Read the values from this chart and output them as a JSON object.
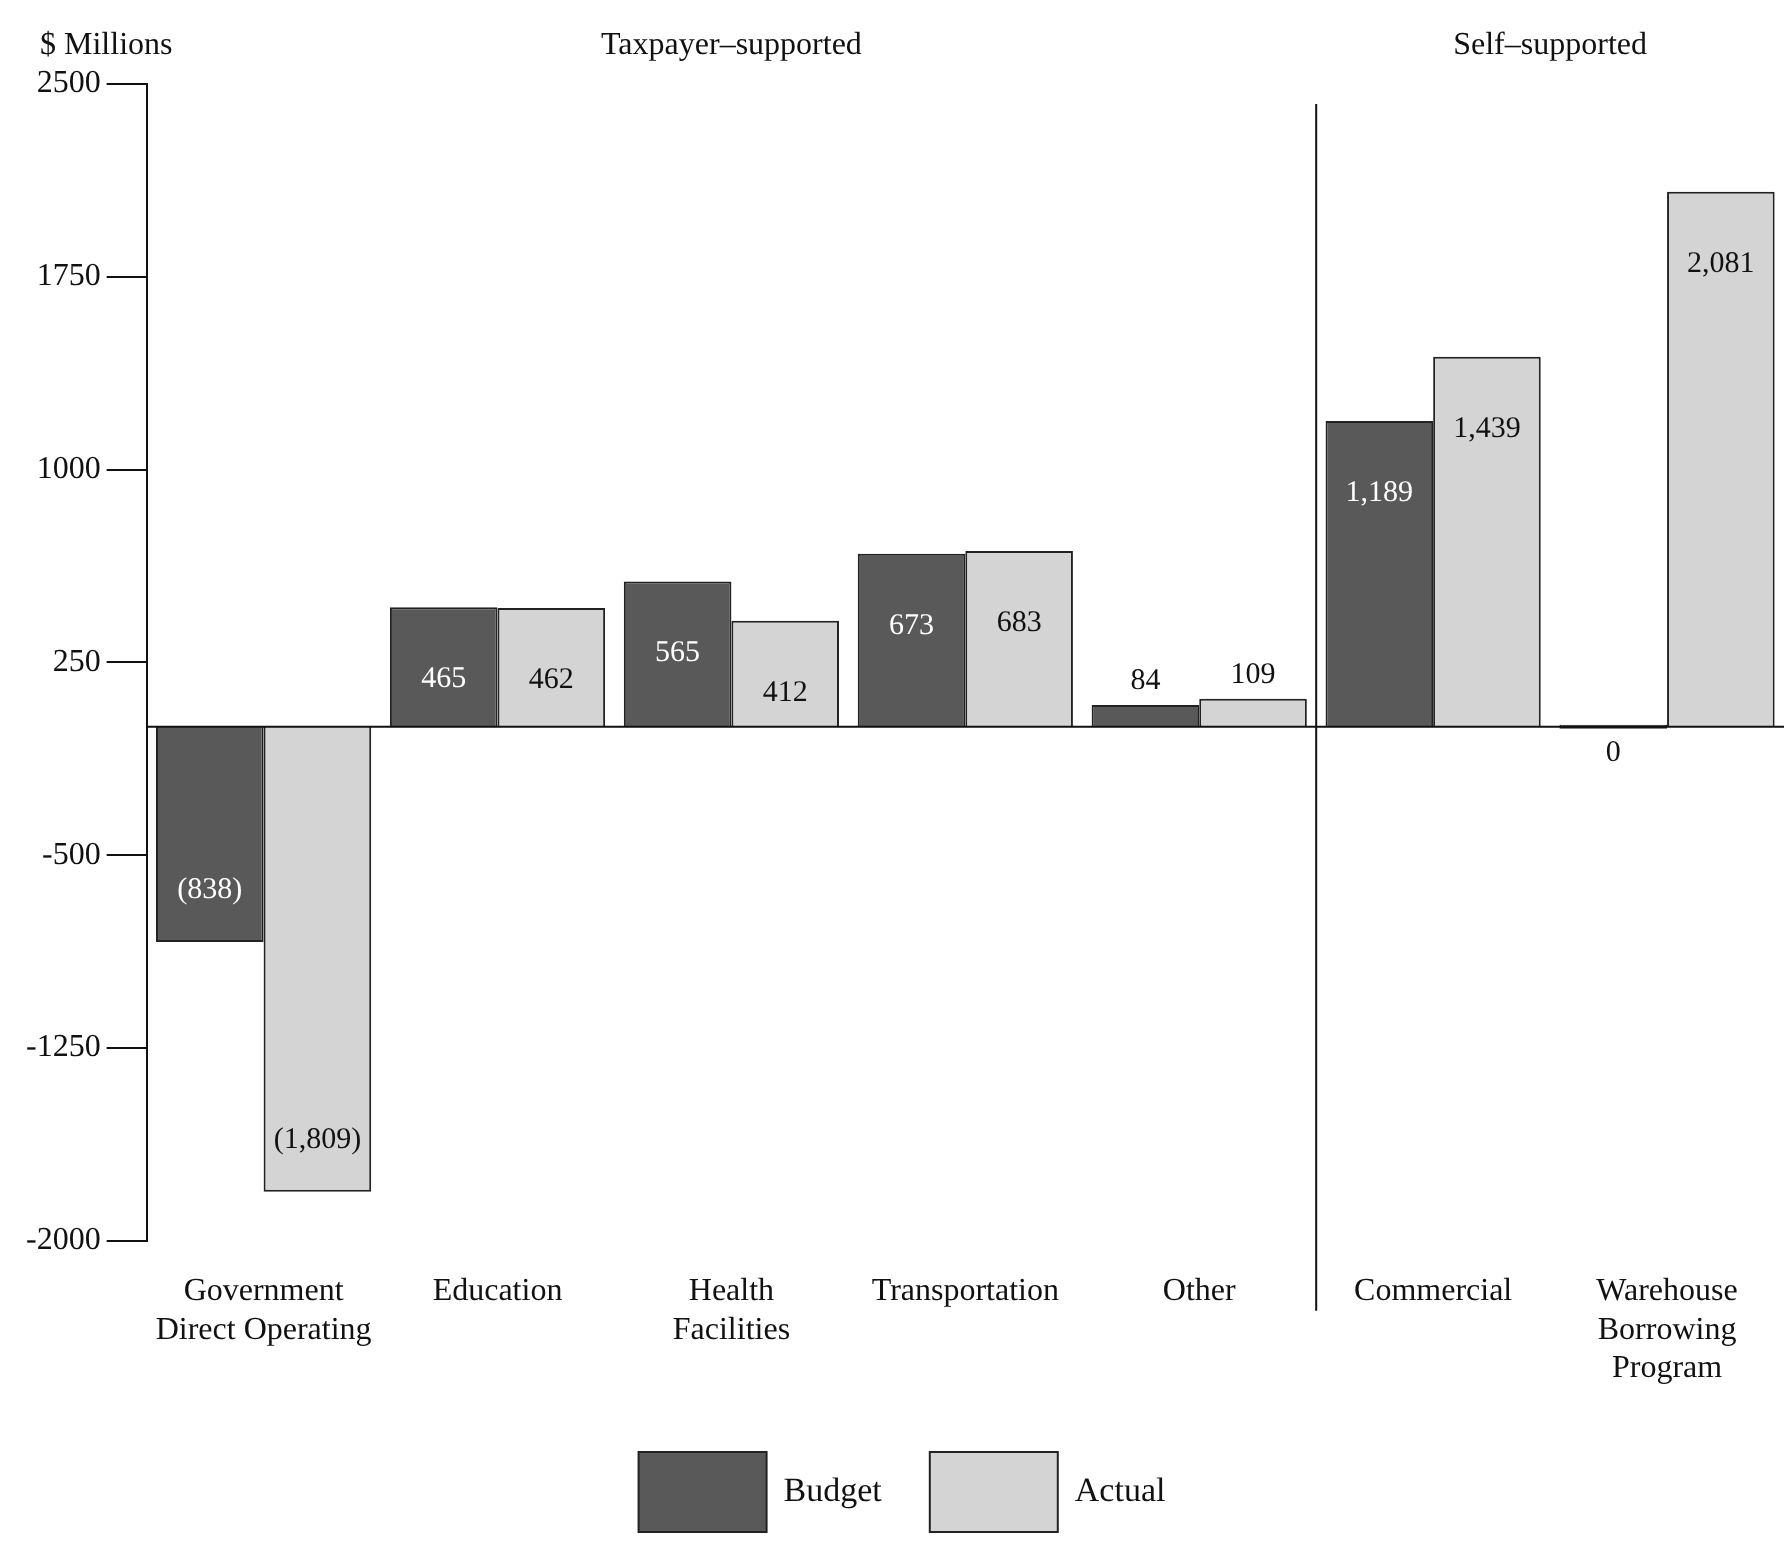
{
  "chart_data": {
    "type": "bar",
    "ylabel": "$ Millions",
    "annotations": [
      "Taxpayer–supported",
      "Self–supported"
    ],
    "categories": [
      "Government Direct Operating",
      "Education",
      "Health Facilities",
      "Transportation",
      "Other",
      "Commercial",
      "Warehouse Borrowing Program"
    ],
    "series": [
      {
        "name": "Budget",
        "color": "#595959",
        "values": [
          -838,
          465,
          565,
          673,
          84,
          1189,
          0
        ],
        "value_labels": [
          "(838)",
          "465",
          "565",
          "673",
          "84",
          "1,189",
          "0"
        ]
      },
      {
        "name": "Actual",
        "color": "#d4d4d4",
        "values": [
          -1809,
          462,
          412,
          683,
          109,
          1439,
          2081
        ],
        "value_labels": [
          "(1,809)",
          "462",
          "412",
          "683",
          "109",
          "1,439",
          "2,081"
        ]
      }
    ],
    "ylim": [
      -2000,
      2500
    ],
    "yticks": [
      -2000,
      -1250,
      -500,
      250,
      1000,
      1750,
      2500
    ],
    "grid": false,
    "legend": "bottom"
  }
}
